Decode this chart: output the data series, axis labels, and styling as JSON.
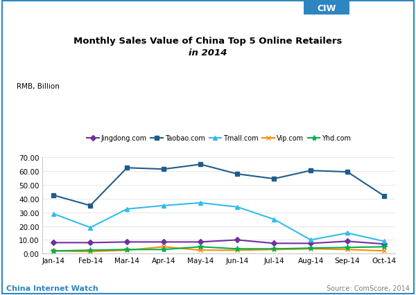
{
  "title_line1": "Monthly Sales Value of China Top 5 Online Retailers",
  "title_line2": "in 2014",
  "ylabel": "RMB, Billion",
  "ylim": [
    0,
    70
  ],
  "yticks": [
    0.0,
    10.0,
    20.0,
    30.0,
    40.0,
    50.0,
    60.0,
    70.0
  ],
  "months": [
    "Jan-14",
    "Feb-14",
    "Mar-14",
    "Apr-14",
    "May-14",
    "Jun-14",
    "Jul-14",
    "Aug-14",
    "Sep-14",
    "Oct-14"
  ],
  "series": {
    "Jingdong.com": {
      "values": [
        8.0,
        8.0,
        8.5,
        8.5,
        8.5,
        10.0,
        7.5,
        7.5,
        9.0,
        7.0
      ],
      "color": "#7030A0",
      "marker": "D",
      "markersize": 4,
      "linewidth": 1.5
    },
    "Taobao.com": {
      "values": [
        42.5,
        35.0,
        62.5,
        61.5,
        65.0,
        58.0,
        54.5,
        60.5,
        59.5,
        42.0
      ],
      "color": "#1F5C8B",
      "marker": "s",
      "markersize": 4,
      "linewidth": 1.5
    },
    "Tmall.com": {
      "values": [
        29.0,
        19.0,
        32.5,
        35.0,
        37.0,
        34.0,
        25.0,
        10.0,
        15.0,
        9.0
      ],
      "color": "#31BBEF",
      "marker": "^",
      "markersize": 4,
      "linewidth": 1.5
    },
    "Vip.com": {
      "values": [
        2.0,
        1.5,
        2.5,
        5.0,
        2.5,
        2.5,
        3.0,
        3.5,
        3.0,
        2.0
      ],
      "color": "#FF8C00",
      "marker": "x",
      "markersize": 5,
      "linewidth": 1.5
    },
    "Yhd.com": {
      "values": [
        2.0,
        2.5,
        3.0,
        3.0,
        5.0,
        3.5,
        3.5,
        4.0,
        4.5,
        5.0
      ],
      "color": "#00B050",
      "marker": "*",
      "markersize": 6,
      "linewidth": 1.5
    }
  },
  "legend_order": [
    "Jingdong.com",
    "Taobao.com",
    "Tmall.com",
    "Vip.com",
    "Yhd.com"
  ],
  "bg_color": "#ffffff",
  "footer_left": "China Internet Watch",
  "footer_left_color": "#2E86C1",
  "footer_right": "Source: ComScore, 2014",
  "header_box_color": "#2E86C1",
  "header_text": "CIW",
  "border_color": "#2E86C1"
}
